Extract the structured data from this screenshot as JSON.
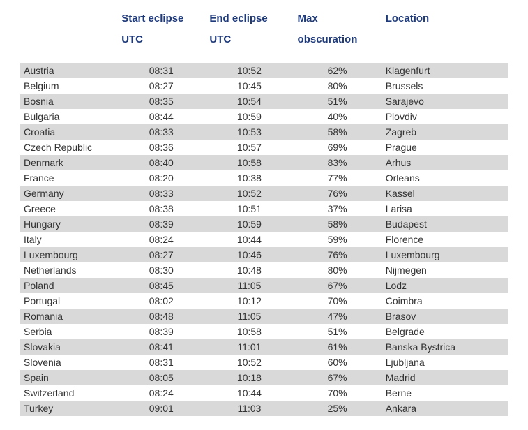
{
  "table": {
    "header_color": "#1f3a7a",
    "header_fontsize": 15,
    "body_text_color": "#333333",
    "body_fontsize": 14,
    "row_bg_odd": "#d9d9d9",
    "row_bg_even": "#ffffff",
    "columns": [
      {
        "key": "country",
        "line1": "",
        "line2": ""
      },
      {
        "key": "start",
        "line1": "Start eclipse",
        "line2": "UTC"
      },
      {
        "key": "end",
        "line1": "End eclipse",
        "line2": "UTC"
      },
      {
        "key": "obsc",
        "line1": "Max",
        "line2": "obscuration"
      },
      {
        "key": "location",
        "line1": "Location",
        "line2": ""
      }
    ],
    "col_align": {
      "country": "left",
      "start": "center",
      "end": "center",
      "obsc": "center",
      "location": "left"
    },
    "rows": [
      {
        "country": "Austria",
        "start": "08:31",
        "end": "10:52",
        "obsc": "62%",
        "location": "Klagenfurt"
      },
      {
        "country": "Belgium",
        "start": "08:27",
        "end": "10:45",
        "obsc": "80%",
        "location": "Brussels"
      },
      {
        "country": "Bosnia",
        "start": "08:35",
        "end": "10:54",
        "obsc": "51%",
        "location": "Sarajevo"
      },
      {
        "country": "Bulgaria",
        "start": "08:44",
        "end": "10:59",
        "obsc": "40%",
        "location": "Plovdiv"
      },
      {
        "country": "Croatia",
        "start": "08:33",
        "end": "10:53",
        "obsc": "58%",
        "location": "Zagreb"
      },
      {
        "country": "Czech Republic",
        "start": "08:36",
        "end": "10:57",
        "obsc": "69%",
        "location": "Prague"
      },
      {
        "country": "Denmark",
        "start": "08:40",
        "end": "10:58",
        "obsc": "83%",
        "location": "Arhus"
      },
      {
        "country": "France",
        "start": "08:20",
        "end": "10:38",
        "obsc": "77%",
        "location": "Orleans"
      },
      {
        "country": "Germany",
        "start": "08:33",
        "end": "10:52",
        "obsc": "76%",
        "location": "Kassel"
      },
      {
        "country": "Greece",
        "start": "08:38",
        "end": "10:51",
        "obsc": "37%",
        "location": "Larisa"
      },
      {
        "country": "Hungary",
        "start": "08:39",
        "end": "10:59",
        "obsc": "58%",
        "location": "Budapest"
      },
      {
        "country": "Italy",
        "start": "08:24",
        "end": "10:44",
        "obsc": "59%",
        "location": "Florence"
      },
      {
        "country": "Luxembourg",
        "start": "08:27",
        "end": "10:46",
        "obsc": "76%",
        "location": "Luxembourg"
      },
      {
        "country": "Netherlands",
        "start": "08:30",
        "end": "10:48",
        "obsc": "80%",
        "location": "Nijmegen"
      },
      {
        "country": "Poland",
        "start": "08:45",
        "end": "11:05",
        "obsc": "67%",
        "location": "Lodz"
      },
      {
        "country": "Portugal",
        "start": "08:02",
        "end": "10:12",
        "obsc": "70%",
        "location": "Coimbra"
      },
      {
        "country": "Romania",
        "start": "08:48",
        "end": "11:05",
        "obsc": "47%",
        "location": "Brasov"
      },
      {
        "country": "Serbia",
        "start": "08:39",
        "end": "10:58",
        "obsc": "51%",
        "location": "Belgrade"
      },
      {
        "country": "Slovakia",
        "start": "08:41",
        "end": "11:01",
        "obsc": "61%",
        "location": "Banska Bystrica"
      },
      {
        "country": "Slovenia",
        "start": "08:31",
        "end": "10:52",
        "obsc": "60%",
        "location": "Ljubljana"
      },
      {
        "country": "Spain",
        "start": "08:05",
        "end": "10:18",
        "obsc": "67%",
        "location": "Madrid"
      },
      {
        "country": "Switzerland",
        "start": "08:24",
        "end": "10:44",
        "obsc": "70%",
        "location": "Berne"
      },
      {
        "country": "Turkey",
        "start": "09:01",
        "end": "11:03",
        "obsc": "25%",
        "location": "Ankara"
      }
    ]
  }
}
